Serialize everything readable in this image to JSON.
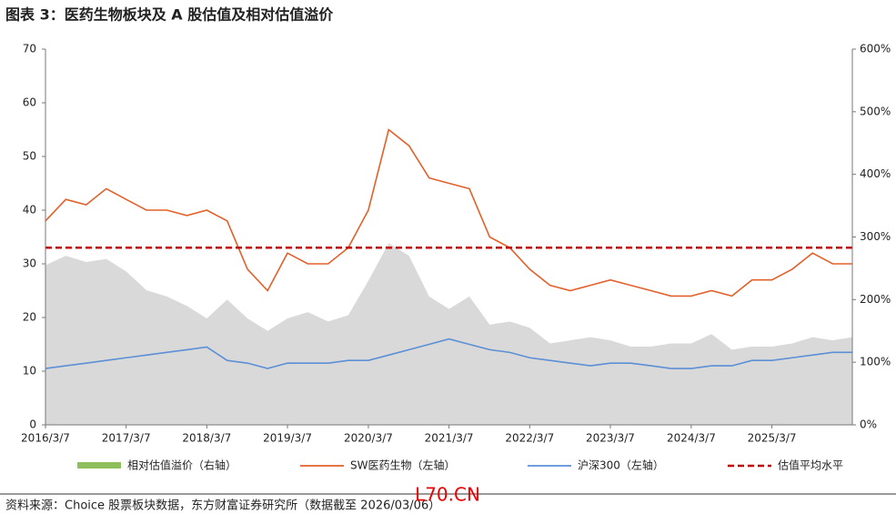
{
  "chart_data": {
    "type": "line",
    "title": "图表 3：医药生物板块及 A 股估值及相对估值溢价",
    "x": [
      "2016/3/7",
      "2016/6/7",
      "2016/9/7",
      "2016/12/7",
      "2017/3/7",
      "2017/6/7",
      "2017/9/7",
      "2017/12/7",
      "2018/3/7",
      "2018/6/7",
      "2018/9/7",
      "2018/12/7",
      "2019/3/7",
      "2019/6/7",
      "2019/9/7",
      "2019/12/7",
      "2020/3/7",
      "2020/6/7",
      "2020/9/7",
      "2020/12/7",
      "2021/3/7",
      "2021/6/7",
      "2021/9/7",
      "2021/12/7",
      "2022/3/7",
      "2022/6/7",
      "2022/9/7",
      "2022/12/7",
      "2023/3/7",
      "2023/6/7",
      "2023/9/7",
      "2023/12/7",
      "2024/3/7",
      "2024/6/7",
      "2024/9/7",
      "2024/12/7",
      "2025/3/7",
      "2025/6/7",
      "2025/9/7",
      "2025/12/7",
      "2026/3/6"
    ],
    "series": [
      {
        "name": "相对估值溢价（右轴）",
        "color": "#d9d9d9",
        "kind": "area",
        "axis": "y2",
        "values": [
          255,
          270,
          260,
          265,
          245,
          215,
          205,
          190,
          170,
          200,
          170,
          150,
          170,
          180,
          165,
          175,
          230,
          290,
          270,
          205,
          185,
          205,
          160,
          165,
          155,
          130,
          135,
          140,
          135,
          125,
          125,
          130,
          130,
          145,
          120,
          125,
          125,
          130,
          140,
          135,
          140
        ]
      },
      {
        "name": "SW医药生物（左轴）",
        "color": "#e3602a",
        "kind": "line",
        "values": [
          38,
          42,
          41,
          44,
          42,
          40,
          40,
          39,
          40,
          38,
          29,
          25,
          32,
          30,
          30,
          33,
          40,
          55,
          52,
          46,
          45,
          44,
          35,
          33,
          29,
          26,
          25,
          26,
          27,
          26,
          25,
          24,
          24,
          25,
          24,
          27,
          27,
          29,
          32,
          30,
          30
        ]
      },
      {
        "name": "沪深300（左轴）",
        "color": "#5b8fd6",
        "kind": "line",
        "values": [
          10.5,
          11,
          11.5,
          12,
          12.5,
          13,
          13.5,
          14,
          14.5,
          12,
          11.5,
          10.5,
          11.5,
          11.5,
          11.5,
          12,
          12,
          13,
          14,
          15,
          16,
          15,
          14,
          13.5,
          12.5,
          12,
          11.5,
          11,
          11.5,
          11.5,
          11,
          10.5,
          10.5,
          11,
          11,
          12,
          12,
          12.5,
          13,
          13.5,
          13.5
        ]
      }
    ],
    "reference": {
      "name": "估值平均水平",
      "value": 283,
      "axis": "y2",
      "color": "#c00000"
    },
    "ylim": [
      0,
      70
    ],
    "yticks": [
      0,
      10,
      20,
      30,
      40,
      50,
      60,
      70
    ],
    "y2lim": [
      0,
      600
    ],
    "y2ticks": [
      {
        "value": 0,
        "label": "0%"
      },
      {
        "value": 100,
        "label": "100%"
      },
      {
        "value": 200,
        "label": "200%"
      },
      {
        "value": 300,
        "label": "300%"
      },
      {
        "value": 400,
        "label": "400%"
      },
      {
        "value": 500,
        "label": "500%"
      },
      {
        "value": 600,
        "label": "600%"
      }
    ],
    "xticks": [
      "2016/3/7",
      "2017/3/7",
      "2018/3/7",
      "2019/3/7",
      "2020/3/7",
      "2021/3/7",
      "2022/3/7",
      "2023/3/7",
      "2024/3/7",
      "2025/3/7"
    ],
    "source": "资料来源：Choice 股票板块数据，东方财富证券研究所（数据截至 2026/03/06）",
    "stamp": "L70.CN"
  }
}
